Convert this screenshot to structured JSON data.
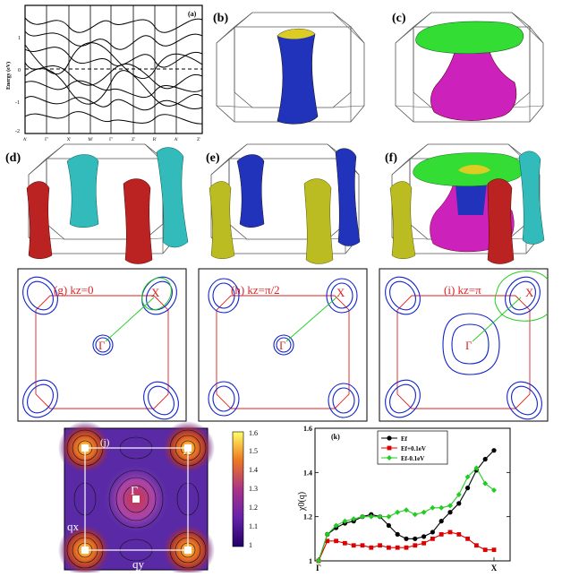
{
  "panels": {
    "a": {
      "label": "(a)",
      "ylabel": "Energy (eV)",
      "yticks": [
        "1",
        "0",
        "-1",
        "-2"
      ],
      "xticks": [
        "A'",
        "Γ'",
        "X'",
        "M'",
        "Γ'",
        "Z'",
        "R'",
        "A'",
        "Z'"
      ]
    },
    "b": {
      "label": "(b)"
    },
    "c": {
      "label": "(c)"
    },
    "d": {
      "label": "(d)"
    },
    "e": {
      "label": "(e)"
    },
    "f": {
      "label": "(f)"
    },
    "g": {
      "title": "(g) kz=0",
      "gamma": "Γ",
      "x": "X"
    },
    "h": {
      "title": "(h) kz=π/2",
      "gamma": "Γ",
      "x": "X"
    },
    "i": {
      "title": "(i) kz=π",
      "gamma": "Γ",
      "x": "X"
    },
    "j": {
      "label": "(j)",
      "gamma": "Γ",
      "x": "X",
      "qx": "qx",
      "qy": "qy",
      "colorbar_ticks": [
        "1.6",
        "1.5",
        "1.4",
        "1.3",
        "1.2",
        "1.1",
        "1"
      ]
    }
  },
  "chart_data": {
    "type": "line",
    "title": "(k)",
    "ylabel": "χ0(q)",
    "x_tick_labels": [
      "Γ",
      "X"
    ],
    "yticks": [
      "1.6",
      "1.4",
      "1.2",
      "1"
    ],
    "ylim": [
      1.0,
      1.6
    ],
    "xlim": [
      0,
      1
    ],
    "grid": false,
    "legend_position": "top-center",
    "series": [
      {
        "name": "Ef",
        "color": "#000000",
        "marker": "circle",
        "x": [
          0,
          0.05,
          0.1,
          0.15,
          0.2,
          0.25,
          0.3,
          0.35,
          0.4,
          0.45,
          0.5,
          0.55,
          0.6,
          0.65,
          0.7,
          0.75,
          0.8,
          0.85,
          0.9,
          0.95,
          1
        ],
        "y": [
          1.0,
          1.12,
          1.15,
          1.17,
          1.18,
          1.2,
          1.21,
          1.2,
          1.16,
          1.12,
          1.1,
          1.1,
          1.11,
          1.13,
          1.18,
          1.22,
          1.26,
          1.33,
          1.41,
          1.46,
          1.5
        ]
      },
      {
        "name": "Ef+0.1eV",
        "color": "#dd0000",
        "marker": "square",
        "x": [
          0,
          0.05,
          0.1,
          0.15,
          0.2,
          0.25,
          0.3,
          0.35,
          0.4,
          0.45,
          0.5,
          0.55,
          0.6,
          0.65,
          0.7,
          0.75,
          0.8,
          0.85,
          0.9,
          0.95,
          1
        ],
        "y": [
          1.0,
          1.09,
          1.09,
          1.08,
          1.07,
          1.07,
          1.06,
          1.07,
          1.06,
          1.06,
          1.06,
          1.07,
          1.08,
          1.1,
          1.12,
          1.13,
          1.12,
          1.1,
          1.07,
          1.05,
          1.05
        ]
      },
      {
        "name": "Ef-0.1eV",
        "color": "#22cc22",
        "marker": "diamond",
        "x": [
          0,
          0.05,
          0.1,
          0.15,
          0.2,
          0.25,
          0.3,
          0.35,
          0.4,
          0.45,
          0.5,
          0.55,
          0.6,
          0.65,
          0.7,
          0.75,
          0.8,
          0.85,
          0.9,
          0.95,
          1
        ],
        "y": [
          1.0,
          1.12,
          1.16,
          1.18,
          1.19,
          1.2,
          1.2,
          1.2,
          1.2,
          1.22,
          1.23,
          1.21,
          1.22,
          1.24,
          1.24,
          1.25,
          1.3,
          1.38,
          1.42,
          1.35,
          1.32
        ]
      }
    ]
  }
}
